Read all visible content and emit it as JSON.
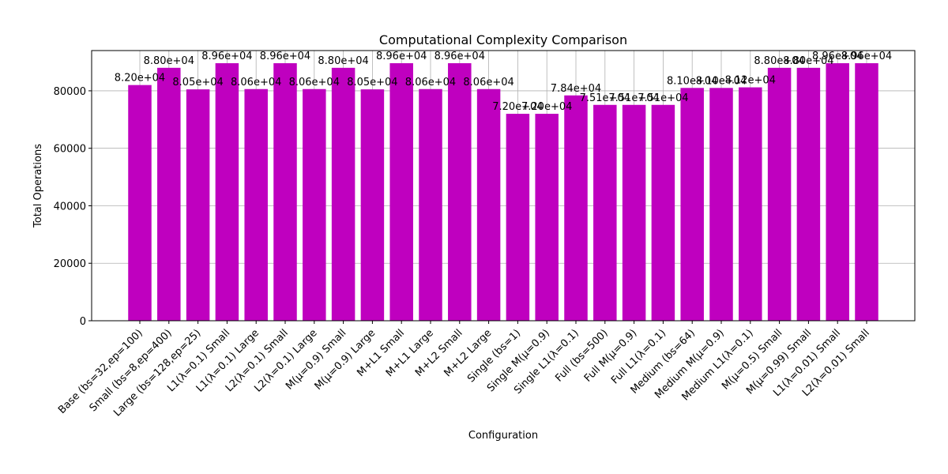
{
  "chart_data": {
    "type": "bar",
    "title": "Computational Complexity Comparison",
    "xlabel": "Configuration",
    "ylabel": "Total Operations",
    "ylim": [
      0,
      94000
    ],
    "yticks": [
      0,
      20000,
      40000,
      60000,
      80000
    ],
    "grid": true,
    "bar_color": "#bf00bf",
    "categories": [
      "Base (bs=32,ep=100)",
      "Small (bs=8,ep=400)",
      "Large (bs=128,ep=25)",
      "L1(λ=0.1) Small",
      "L1(λ=0.1) Large",
      "L2(λ=0.1) Small",
      "L2(λ=0.1) Large",
      "M(μ=0.9) Small",
      "M(μ=0.9) Large",
      "M+L1 Small",
      "M+L1 Large",
      "M+L2 Small",
      "M+L2 Large",
      "Single (bs=1)",
      "Single M(μ=0.9)",
      "Single L1(λ=0.1)",
      "Full (bs=500)",
      "Full M(μ=0.9)",
      "Full L1(λ=0.1)",
      "Medium (bs=64)",
      "Medium M(μ=0.9)",
      "Medium L1(λ=0.1)",
      "M(μ=0.5) Small",
      "M(μ=0.99) Small",
      "L1(λ=0.01) Small",
      "L2(λ=0.01) Small"
    ],
    "values": [
      82000,
      88000,
      80500,
      89600,
      80600,
      89600,
      80600,
      88000,
      80500,
      89600,
      80600,
      89600,
      80600,
      72000,
      72000,
      78400,
      75100,
      75100,
      75100,
      81000,
      81000,
      81200,
      88000,
      88000,
      89600,
      89600
    ],
    "data_labels": [
      "8.20e+04",
      "8.80e+04",
      "8.05e+04",
      "8.96e+04",
      "8.06e+04",
      "8.96e+04",
      "8.06e+04",
      "8.80e+04",
      "8.05e+04",
      "8.96e+04",
      "8.06e+04",
      "8.96e+04",
      "8.06e+04",
      "7.20e+04",
      "7.20e+04",
      "7.84e+04",
      "7.51e+04",
      "7.51e+04",
      "7.51e+04",
      "8.10e+04",
      "8.10e+04",
      "8.12e+04",
      "8.80e+04",
      "8.80e+04",
      "8.96e+04",
      "8.96e+04"
    ]
  }
}
